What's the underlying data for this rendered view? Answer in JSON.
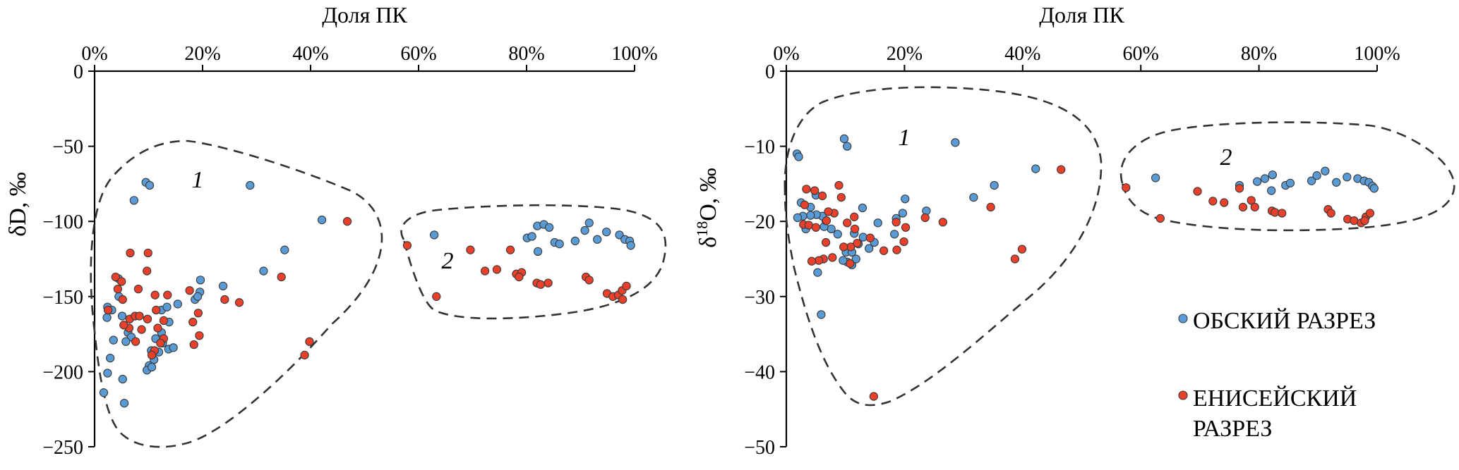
{
  "colors": {
    "ob": "#5b9bd5",
    "enisei": "#e8402a",
    "axis": "#000000",
    "cluster": "#333333"
  },
  "legend": [
    {
      "id": "ob",
      "label": "ОБСКИЙ РАЗРЕЗ",
      "color": "#5b9bd5"
    },
    {
      "id": "enisei",
      "label": "ЕНИСЕЙСКИЙ РАЗРЕЗ",
      "color": "#e8402a"
    }
  ],
  "chart_data": [
    {
      "type": "scatter",
      "xlabel": "Доля ПК",
      "ylabel": "δD, ‰",
      "x_ticks": [
        "0%",
        "20%",
        "40%",
        "60%",
        "80%",
        "100%"
      ],
      "y_ticks": [
        "0",
        "-50",
        "-100",
        "-150",
        "-200",
        "-250"
      ],
      "xlim": [
        0,
        100
      ],
      "ylim": [
        -250,
        0
      ],
      "x_axis_position": "top",
      "grid": false,
      "cluster_labels": [
        "1",
        "2"
      ],
      "series": [
        {
          "name": "ОБСКИЙ РАЗРЕЗ",
          "color": "#5b9bd5",
          "points": [
            [
              9.5,
              -74
            ],
            [
              10.2,
              -76
            ],
            [
              7.3,
              -86
            ],
            [
              28.8,
              -76
            ],
            [
              42.1,
              -99
            ],
            [
              35.2,
              -119
            ],
            [
              31.3,
              -133
            ],
            [
              23.8,
              -143
            ],
            [
              19.6,
              -139
            ],
            [
              19.5,
              -147
            ],
            [
              18.6,
              -152
            ],
            [
              19.1,
              -150
            ],
            [
              15.4,
              -155
            ],
            [
              12.4,
              -159
            ],
            [
              13.4,
              -157
            ],
            [
              13.8,
              -167
            ],
            [
              12.4,
              -174
            ],
            [
              11.3,
              -178
            ],
            [
              12.6,
              -181
            ],
            [
              11.9,
              -187
            ],
            [
              13.7,
              -185
            ],
            [
              14.6,
              -184
            ],
            [
              10.1,
              -196
            ],
            [
              9.7,
              -199
            ],
            [
              10.6,
              -197
            ],
            [
              10.5,
              -186
            ],
            [
              11.0,
              -192
            ],
            [
              6.2,
              -174
            ],
            [
              6.8,
              -177
            ],
            [
              5.8,
              -180
            ],
            [
              5.1,
              -163
            ],
            [
              4.5,
              -150
            ],
            [
              4.4,
              -138
            ],
            [
              2.3,
              -164
            ],
            [
              3.5,
              -179
            ],
            [
              2.9,
              -191
            ],
            [
              2.4,
              -201
            ],
            [
              1.7,
              -214
            ],
            [
              5.2,
              -205
            ],
            [
              5.5,
              -221
            ],
            [
              2.4,
              -157
            ],
            [
              3.2,
              -159
            ],
            [
              62.9,
              -109
            ],
            [
              80.1,
              -111
            ],
            [
              81.0,
              -110
            ],
            [
              82.0,
              -103
            ],
            [
              83.2,
              -102
            ],
            [
              84.2,
              -104
            ],
            [
              82.1,
              -120
            ],
            [
              85.2,
              -114
            ],
            [
              86.1,
              -115
            ],
            [
              89.0,
              -113
            ],
            [
              90.8,
              -106
            ],
            [
              91.6,
              -101
            ],
            [
              93.1,
              -112
            ],
            [
              94.8,
              -107
            ],
            [
              97.2,
              -109
            ],
            [
              98.2,
              -112
            ],
            [
              99.1,
              -113
            ],
            [
              99.3,
              -116
            ]
          ]
        },
        {
          "name": "ЕНИСЕЙСКИЙ РАЗРЕЗ",
          "color": "#e8402a",
          "points": [
            [
              6.6,
              -121
            ],
            [
              9.9,
              -121
            ],
            [
              9.7,
              -133
            ],
            [
              46.8,
              -100
            ],
            [
              34.6,
              -137
            ],
            [
              24.1,
              -152
            ],
            [
              26.8,
              -154
            ],
            [
              17.6,
              -146
            ],
            [
              19.2,
              -161
            ],
            [
              18.2,
              -167
            ],
            [
              13.5,
              -149
            ],
            [
              11.2,
              -149
            ],
            [
              8.1,
              -145
            ],
            [
              3.9,
              -137
            ],
            [
              5.0,
              -140
            ],
            [
              4.3,
              -145
            ],
            [
              2.5,
              -159
            ],
            [
              5.2,
              -152
            ],
            [
              6.5,
              -165
            ],
            [
              7.5,
              -163
            ],
            [
              8.3,
              -163
            ],
            [
              9.8,
              -165
            ],
            [
              11.4,
              -159
            ],
            [
              12.8,
              -166
            ],
            [
              11.7,
              -171
            ],
            [
              12.8,
              -178
            ],
            [
              12.2,
              -181
            ],
            [
              11.1,
              -186
            ],
            [
              10.6,
              -189
            ],
            [
              8.7,
              -172
            ],
            [
              7.6,
              -180
            ],
            [
              6.4,
              -171
            ],
            [
              5.4,
              -169
            ],
            [
              19.4,
              -176
            ],
            [
              18.4,
              -182
            ],
            [
              38.9,
              -189
            ],
            [
              39.8,
              -180
            ],
            [
              57.9,
              -116
            ],
            [
              63.3,
              -150
            ],
            [
              69.6,
              -119
            ],
            [
              72.3,
              -133
            ],
            [
              74.5,
              -132
            ],
            [
              77.0,
              -119
            ],
            [
              78.1,
              -135
            ],
            [
              79.1,
              -134
            ],
            [
              78.6,
              -137
            ],
            [
              81.9,
              -141
            ],
            [
              82.6,
              -142
            ],
            [
              84.0,
              -141
            ],
            [
              91.0,
              -137
            ],
            [
              91.6,
              -139
            ],
            [
              94.9,
              -148
            ],
            [
              96.0,
              -150
            ],
            [
              97.0,
              -149
            ],
            [
              97.7,
              -146
            ],
            [
              98.5,
              -143
            ],
            [
              97.8,
              -152
            ]
          ]
        }
      ]
    },
    {
      "type": "scatter",
      "xlabel": "Доля ПК",
      "ylabel": "δ18O, ‰",
      "x_ticks": [
        "0%",
        "20%",
        "40%",
        "60%",
        "80%",
        "100%"
      ],
      "y_ticks": [
        "0",
        "-10",
        "-20",
        "-30",
        "-40",
        "-50"
      ],
      "xlim": [
        0,
        100
      ],
      "ylim": [
        -50,
        0
      ],
      "x_axis_position": "top",
      "grid": false,
      "cluster_labels": [
        "1",
        "2"
      ],
      "series": [
        {
          "name": "ОБСКИЙ РАЗРЕЗ",
          "color": "#5b9bd5",
          "points": [
            [
              9.8,
              -9
            ],
            [
              10.3,
              -10
            ],
            [
              28.6,
              -9.5
            ],
            [
              1.8,
              -11
            ],
            [
              2.1,
              -11.4
            ],
            [
              42.2,
              -13
            ],
            [
              35.2,
              -15.2
            ],
            [
              31.7,
              -16.8
            ],
            [
              20.1,
              -17
            ],
            [
              19.7,
              -18.9
            ],
            [
              23.7,
              -18.6
            ],
            [
              18.6,
              -19.6
            ],
            [
              18.3,
              -21.7
            ],
            [
              15.5,
              -20.2
            ],
            [
              12.9,
              -18.2
            ],
            [
              14.9,
              -22.8
            ],
            [
              13.0,
              -22.1
            ],
            [
              14.0,
              -23.6
            ],
            [
              11.5,
              -21.6
            ],
            [
              12.2,
              -23
            ],
            [
              10.4,
              -23.6
            ],
            [
              10.1,
              -24.1
            ],
            [
              11.1,
              -24.1
            ],
            [
              10.3,
              -25.4
            ],
            [
              11.1,
              -25.8
            ],
            [
              9.6,
              -25.2
            ],
            [
              11.8,
              -25
            ],
            [
              8.7,
              -21.7
            ],
            [
              7.6,
              -21
            ],
            [
              6.4,
              -20.7
            ],
            [
              6.7,
              -19.9
            ],
            [
              6.1,
              -19.3
            ],
            [
              5.1,
              -19.1
            ],
            [
              4.1,
              -19.2
            ],
            [
              2.8,
              -19.3
            ],
            [
              3.3,
              -21
            ],
            [
              1.9,
              -19.5
            ],
            [
              2.5,
              -17.5
            ],
            [
              4.1,
              -18.1
            ],
            [
              5.0,
              -16.5
            ],
            [
              5.3,
              -26.8
            ],
            [
              5.9,
              -32.4
            ],
            [
              62.5,
              -14.2
            ],
            [
              76.7,
              -15.2
            ],
            [
              79.7,
              -14.7
            ],
            [
              81.0,
              -14.3
            ],
            [
              82.3,
              -13.8
            ],
            [
              82.1,
              -15.9
            ],
            [
              84.5,
              -15.2
            ],
            [
              85.3,
              -14.9
            ],
            [
              88.9,
              -14.6
            ],
            [
              89.8,
              -13.9
            ],
            [
              91.2,
              -13.3
            ],
            [
              93.1,
              -14.8
            ],
            [
              94.9,
              -14.1
            ],
            [
              96.7,
              -14.3
            ],
            [
              97.8,
              -14.6
            ],
            [
              98.6,
              -14.8
            ],
            [
              99.2,
              -15.3
            ],
            [
              99.5,
              -15.6
            ]
          ]
        },
        {
          "name": "ЕНИСЕЙСКИЙ РАЗРЕЗ",
          "color": "#e8402a",
          "points": [
            [
              46.5,
              -13.1
            ],
            [
              34.6,
              -18.1
            ],
            [
              26.5,
              -20.1
            ],
            [
              23.5,
              -19.5
            ],
            [
              20.2,
              -20.8
            ],
            [
              18.6,
              -20.1
            ],
            [
              19.9,
              -22.7
            ],
            [
              18.7,
              -23.8
            ],
            [
              16.5,
              -23.9
            ],
            [
              14.2,
              -22.2
            ],
            [
              12.0,
              -22.9
            ],
            [
              10.9,
              -23.4
            ],
            [
              11.5,
              -19.4
            ],
            [
              10.3,
              -20.2
            ],
            [
              8.9,
              -15.2
            ],
            [
              9.3,
              -16.8
            ],
            [
              8.1,
              -18.9
            ],
            [
              7.1,
              -18.7
            ],
            [
              6.1,
              -16.6
            ],
            [
              4.8,
              -15.9
            ],
            [
              3.4,
              -15.7
            ],
            [
              3.1,
              -17.8
            ],
            [
              2.9,
              -20.4
            ],
            [
              3.8,
              -20.5
            ],
            [
              5.0,
              -20.8
            ],
            [
              6.8,
              -19.9
            ],
            [
              6.7,
              -22.8
            ],
            [
              6.3,
              -25
            ],
            [
              5.5,
              -25.2
            ],
            [
              4.3,
              -25.3
            ],
            [
              7.8,
              -24.8
            ],
            [
              9.7,
              -23.4
            ],
            [
              10.8,
              -25.6
            ],
            [
              11.6,
              -21
            ],
            [
              14.8,
              -43.3
            ],
            [
              38.7,
              -25
            ],
            [
              39.9,
              -23.7
            ],
            [
              57.5,
              -15.5
            ],
            [
              63.3,
              -19.6
            ],
            [
              69.6,
              -16
            ],
            [
              72.2,
              -17.3
            ],
            [
              74.1,
              -17.5
            ],
            [
              76.7,
              -15.6
            ],
            [
              77.3,
              -18.1
            ],
            [
              78.7,
              -17.2
            ],
            [
              79.3,
              -18.1
            ],
            [
              82.2,
              -18.6
            ],
            [
              82.7,
              -18.8
            ],
            [
              83.9,
              -18.9
            ],
            [
              91.7,
              -18.4
            ],
            [
              92.2,
              -18.9
            ],
            [
              95.0,
              -19.7
            ],
            [
              96.1,
              -19.9
            ],
            [
              97.3,
              -20.2
            ],
            [
              98.1,
              -19.4
            ],
            [
              98.8,
              -18.9
            ],
            [
              97.9,
              -19.9
            ]
          ]
        }
      ]
    }
  ]
}
